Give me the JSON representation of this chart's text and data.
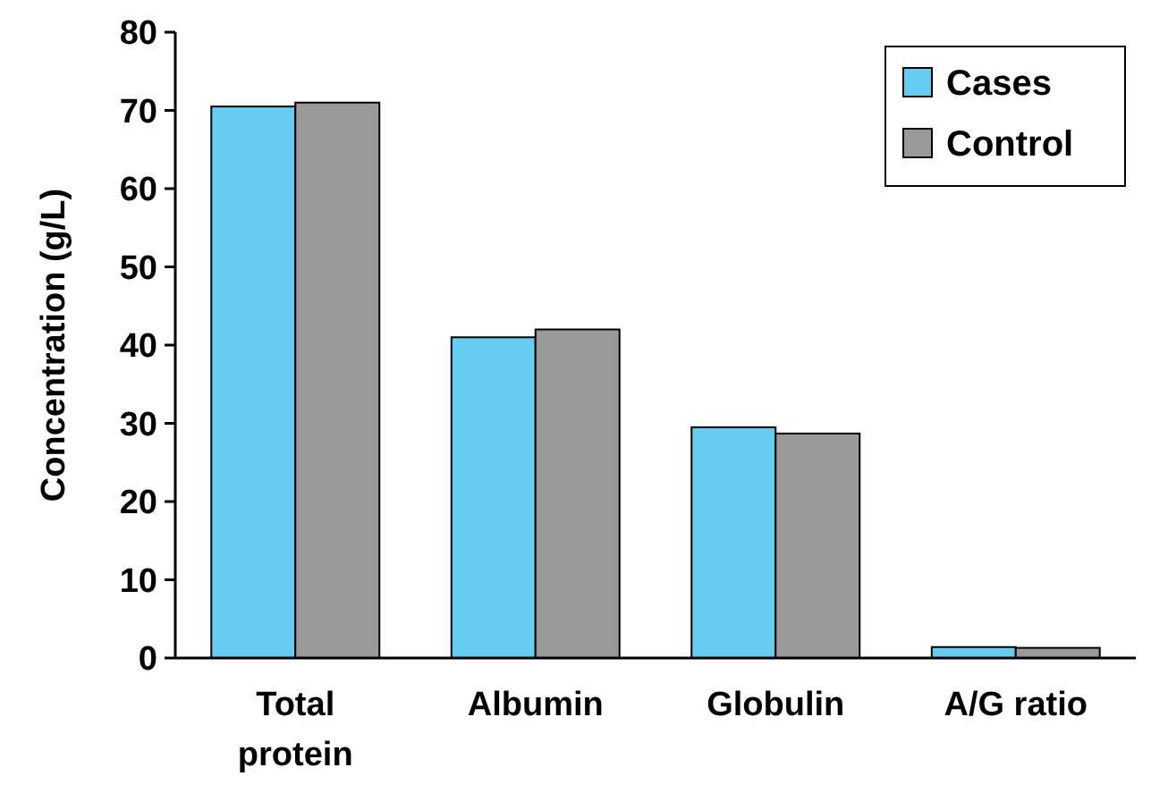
{
  "chart_data": {
    "type": "bar",
    "ylabel": "Concentration (g/L)",
    "categories": [
      "Total protein",
      "Albumin",
      "Globulin",
      "A/G ratio"
    ],
    "series": [
      {
        "name": "Cases",
        "color": "#66ccf2",
        "values": [
          70.5,
          41,
          29.5,
          1.4
        ]
      },
      {
        "name": "Control",
        "color": "#999999",
        "values": [
          71,
          42,
          28.7,
          1.3
        ]
      }
    ],
    "ylim": [
      0,
      80
    ],
    "yticks": [
      0,
      10,
      20,
      30,
      40,
      50,
      60,
      70,
      80
    ],
    "grid": false,
    "legend": "top right"
  }
}
